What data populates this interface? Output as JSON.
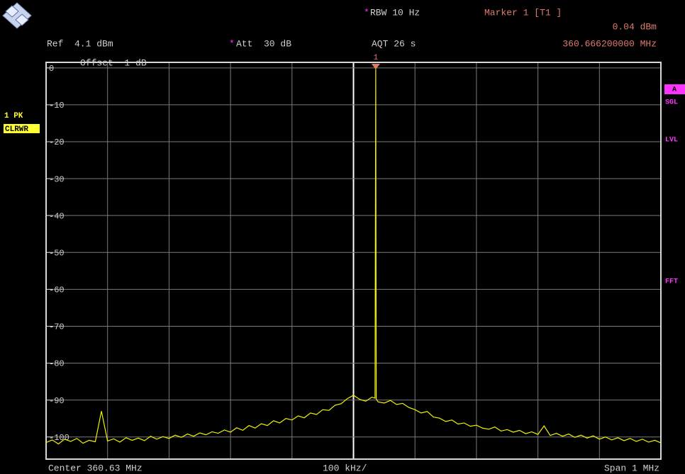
{
  "chart_data": {
    "type": "line",
    "header": {
      "rbw_star": "*",
      "rbw": "RBW 10 Hz",
      "marker": "Marker 1 [T1 ]",
      "marker_level": "0.04 dBm",
      "marker_freq": "360.666200000 MHz",
      "ref": "Ref  4.1 dBm",
      "att_star": "*",
      "att": "Att  30 dB",
      "aqt": "AQT 26 s",
      "offset": "Offset  1 dB",
      "marker_label": "1"
    },
    "trace_label": [
      "1 PK",
      "CLRWR"
    ],
    "side_labels": [
      "A",
      "SGL",
      "LVL",
      "FFT"
    ],
    "footer": {
      "center": "Center 360.63 MHz",
      "div": "100 kHz/",
      "span": "Span 1 MHz"
    },
    "xlim": [
      360.13,
      361.13
    ],
    "ylim": [
      -106,
      1.5
    ],
    "yticks": [
      0,
      -10,
      -20,
      -30,
      -40,
      -50,
      -60,
      -70,
      -80,
      -90,
      -100
    ],
    "grid": true,
    "x": [
      360.13,
      360.14,
      360.15,
      360.16,
      360.17,
      360.18,
      360.19,
      360.2,
      360.21,
      360.22,
      360.23,
      360.24,
      360.25,
      360.26,
      360.27,
      360.28,
      360.29,
      360.3,
      360.31,
      360.32,
      360.33,
      360.34,
      360.35,
      360.36,
      360.37,
      360.38,
      360.39,
      360.4,
      360.41,
      360.42,
      360.43,
      360.44,
      360.45,
      360.46,
      360.47,
      360.48,
      360.49,
      360.5,
      360.51,
      360.52,
      360.53,
      360.54,
      360.55,
      360.56,
      360.57,
      360.58,
      360.59,
      360.6,
      360.61,
      360.62,
      360.63,
      360.64,
      360.65,
      360.66,
      360.665,
      360.6662,
      360.667,
      360.67,
      360.68,
      360.69,
      360.7,
      360.71,
      360.72,
      360.73,
      360.74,
      360.75,
      360.76,
      360.77,
      360.78,
      360.79,
      360.8,
      360.81,
      360.82,
      360.83,
      360.84,
      360.85,
      360.86,
      360.87,
      360.88,
      360.89,
      360.9,
      360.91,
      360.92,
      360.93,
      360.94,
      360.95,
      360.96,
      360.97,
      360.98,
      360.99,
      361.0,
      361.01,
      361.02,
      361.03,
      361.04,
      361.05,
      361.06,
      361.07,
      361.08,
      361.09,
      361.1,
      361.11,
      361.12,
      361.13
    ],
    "series": [
      {
        "color": "#f2f200",
        "values": [
          -101.5,
          -100.8,
          -101.9,
          -100.6,
          -101.2,
          -100.4,
          -101.7,
          -100.9,
          -101.3,
          -93.0,
          -101.1,
          -100.5,
          -101.4,
          -100.2,
          -100.9,
          -100.3,
          -101.0,
          -99.8,
          -100.6,
          -99.9,
          -100.4,
          -99.5,
          -100.1,
          -99.2,
          -99.8,
          -98.9,
          -99.4,
          -98.6,
          -99.0,
          -98.1,
          -98.7,
          -97.5,
          -98.2,
          -96.9,
          -97.6,
          -96.4,
          -96.9,
          -95.6,
          -96.2,
          -95.0,
          -95.4,
          -94.3,
          -94.8,
          -93.5,
          -93.9,
          -92.6,
          -92.8,
          -91.4,
          -91.0,
          -89.6,
          -88.7,
          -89.8,
          -90.3,
          -89.2,
          -89.5,
          0.04,
          -89.7,
          -90.5,
          -90.8,
          -90.1,
          -91.2,
          -90.9,
          -92.0,
          -92.6,
          -93.5,
          -93.1,
          -94.6,
          -94.9,
          -95.8,
          -95.4,
          -96.5,
          -96.2,
          -97.1,
          -96.8,
          -97.6,
          -97.9,
          -97.3,
          -98.4,
          -98.0,
          -98.7,
          -98.2,
          -99.1,
          -98.6,
          -99.3,
          -97.0,
          -99.6,
          -99.0,
          -99.8,
          -99.2,
          -100.1,
          -99.5,
          -100.3,
          -99.7,
          -100.6,
          -100.0,
          -100.8,
          -100.2,
          -101.0,
          -100.4,
          -101.2,
          -100.6,
          -101.4,
          -100.9,
          -101.6
        ]
      }
    ]
  }
}
